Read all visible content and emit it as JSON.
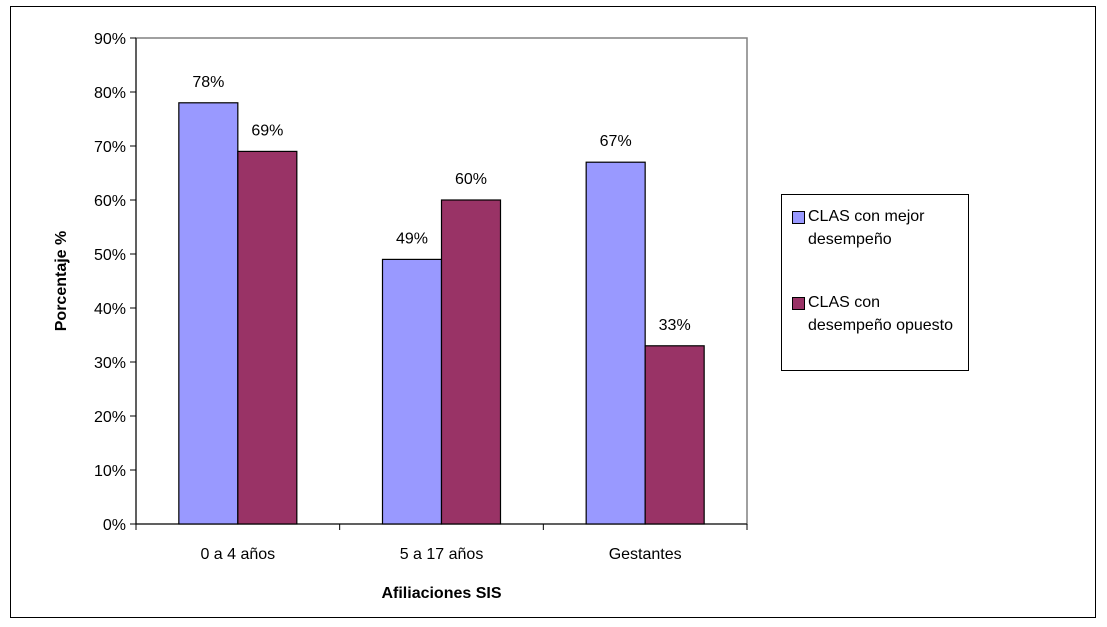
{
  "chart_data": {
    "type": "bar",
    "title": "",
    "xlabel": "Afiliaciones SIS",
    "ylabel": "Porcentaje %",
    "categories": [
      "0 a 4 años",
      "5 a 17 años",
      "Gestantes"
    ],
    "series": [
      {
        "name": "CLAS con mejor desempeño",
        "values": [
          78,
          49,
          67
        ],
        "labels": [
          "78%",
          "49%",
          "67%"
        ],
        "color": "#9999ff"
      },
      {
        "name": "CLAS con desempeño opuesto",
        "values": [
          69,
          60,
          33
        ],
        "labels": [
          "69%",
          "60%",
          "33%"
        ],
        "color": "#993366"
      }
    ],
    "ylim": [
      0,
      90
    ],
    "yticks": [
      "0%",
      "10%",
      "20%",
      "30%",
      "40%",
      "50%",
      "60%",
      "70%",
      "80%",
      "90%"
    ],
    "grid": false,
    "legend": "right",
    "plot_background": "#ffffff",
    "axis_color": "#808080"
  }
}
